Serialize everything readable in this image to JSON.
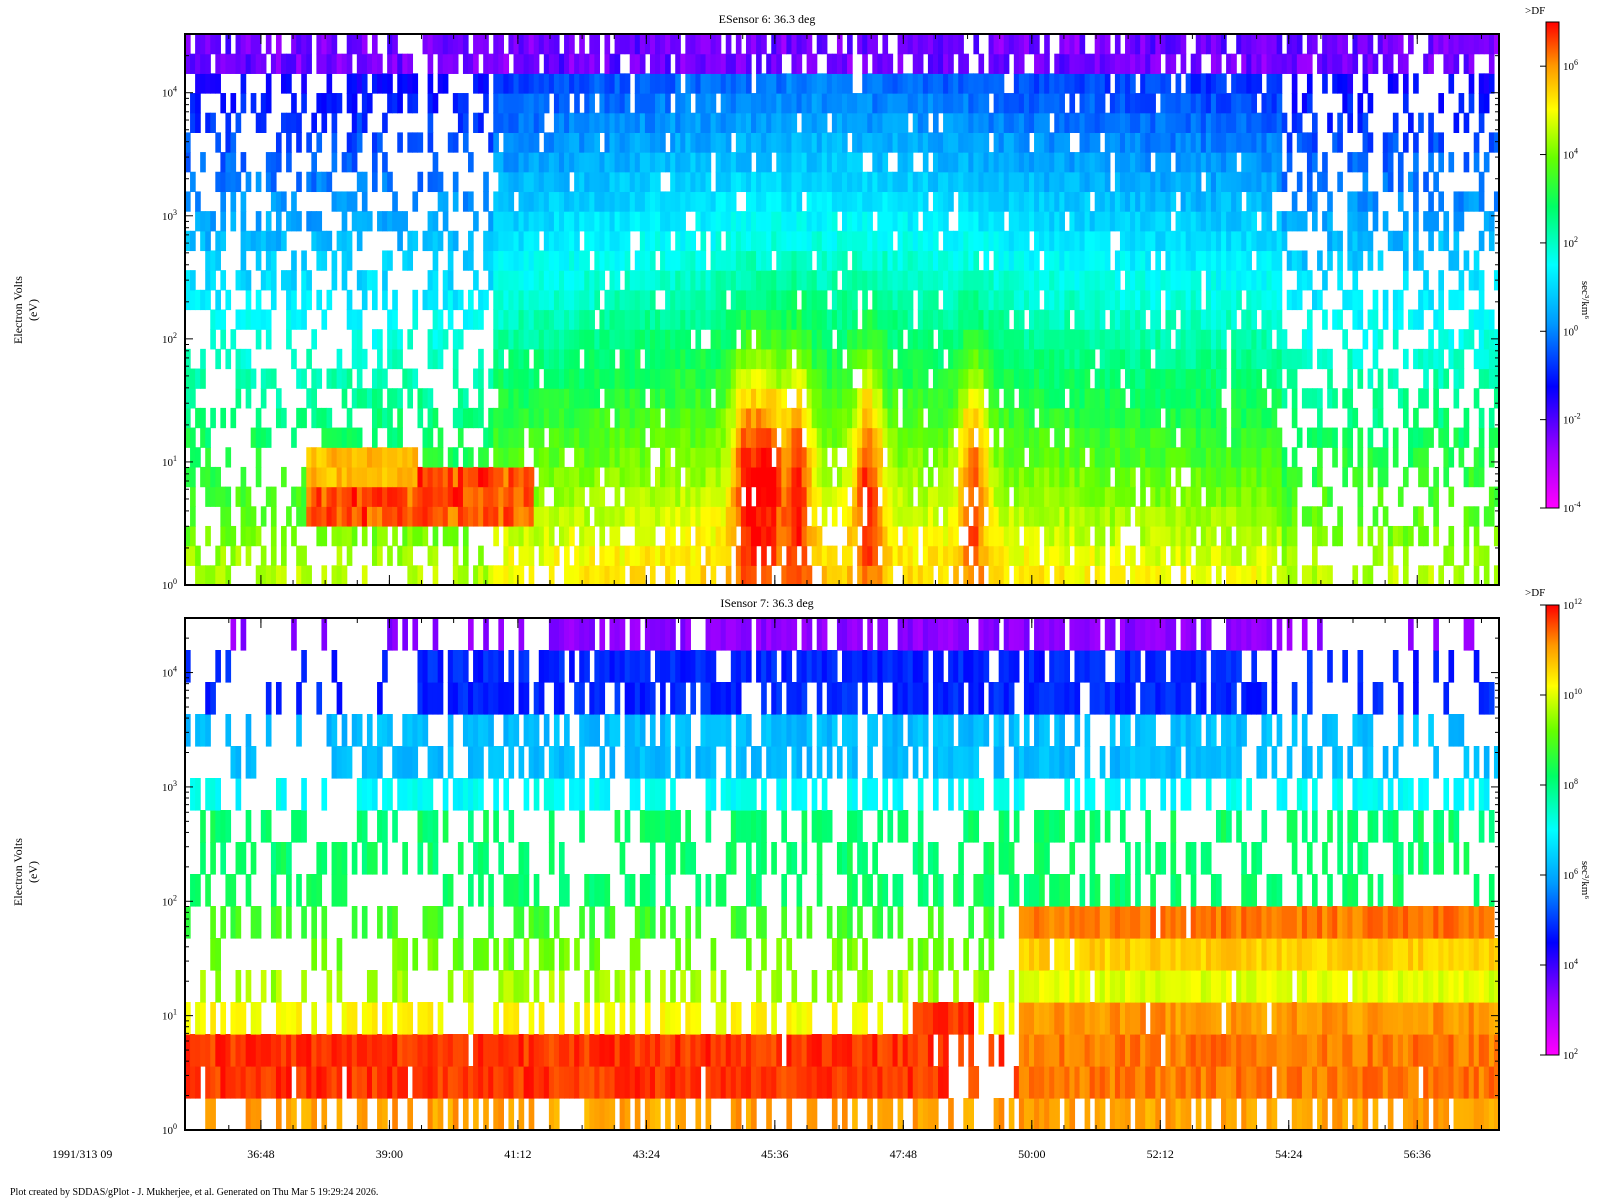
{
  "figure": {
    "date_label": "1991/313 09",
    "footer": "Plot created by SDDAS/gPlot - J. Mukherjee, et al.  Generated on Thu Mar 5 19:29:24 2026."
  },
  "chart_data": [
    {
      "type": "heatmap",
      "title": "ESensor 6: 36.3 deg",
      "ylabel": [
        "Electron Volts",
        "(eV)"
      ],
      "yscale": "log",
      "ylim": [
        1,
        30000
      ],
      "ytick_values": [
        1,
        10,
        100,
        1000,
        10000
      ],
      "ytick_labels": [
        [
          "10",
          "0"
        ],
        [
          "10",
          "1"
        ],
        [
          "10",
          "2"
        ],
        [
          "10",
          "3"
        ],
        [
          "10",
          "4"
        ]
      ],
      "xlim_minutes": [
        35.5,
        58.0
      ],
      "colorbar": {
        "label": ">DF",
        "unit": "sec³/km⁶",
        "scale": "log",
        "range": [
          0.0001,
          10000000
        ],
        "tick_values": [
          0.0001,
          0.01,
          1,
          100,
          10000,
          1000000
        ],
        "tick_labels": [
          [
            "10",
            "-4"
          ],
          [
            "10",
            "-2"
          ],
          [
            "10",
            "0"
          ],
          [
            "10",
            "2"
          ],
          [
            "10",
            "4"
          ],
          [
            "10",
            "6"
          ]
        ]
      },
      "features": [
        {
          "desc": "white/sparse background before 40:50 above 20 eV",
          "t": [
            35.5,
            40.8
          ]
        },
        {
          "desc": "broad green-cyan-blue band 40:50 to 54:30",
          "t": [
            40.8,
            54.3
          ]
        },
        {
          "desc": "red core at 3-8 eV",
          "t": [
            37.6,
            41.5
          ]
        },
        {
          "desc": "orange-yellow vertical bursts",
          "t_centers": [
            45.1,
            45.5,
            46.0,
            47.2,
            49.0
          ]
        }
      ]
    },
    {
      "type": "heatmap",
      "title": "ISensor 7: 36.3 deg",
      "ylabel": [
        "Electron Volts",
        "(eV)"
      ],
      "yscale": "log",
      "ylim": [
        1,
        30000
      ],
      "ytick_values": [
        1,
        10,
        100,
        1000,
        10000
      ],
      "ytick_labels": [
        [
          "10",
          "0"
        ],
        [
          "10",
          "1"
        ],
        [
          "10",
          "2"
        ],
        [
          "10",
          "3"
        ],
        [
          "10",
          "4"
        ]
      ],
      "xlim_minutes": [
        35.5,
        58.0
      ],
      "colorbar": {
        "label": ">DF",
        "unit": "sec³/km⁶",
        "scale": "log",
        "range": [
          100,
          1000000000000
        ],
        "tick_values": [
          100,
          10000,
          1000000,
          100000000,
          10000000000,
          1000000000000
        ],
        "tick_labels": [
          [
            "10",
            "2"
          ],
          [
            "10",
            "4"
          ],
          [
            "10",
            "6"
          ],
          [
            "10",
            "8"
          ],
          [
            "10",
            "10"
          ],
          [
            "10",
            "12"
          ]
        ]
      },
      "features": [
        {
          "desc": "red band 2.5-5 eV",
          "t": [
            35.5,
            48.6
          ]
        },
        {
          "desc": "orange-red band 20-100 eV after jump",
          "t": [
            49.8,
            58.0
          ]
        },
        {
          "desc": "dense blue 3000-20000 eV",
          "t": [
            38.5,
            54.0
          ]
        }
      ]
    }
  ],
  "x_axis": {
    "tick_labels": [
      "36:48",
      "39:00",
      "41:12",
      "43:24",
      "45:36",
      "47:48",
      "50:00",
      "52:12",
      "54:24",
      "56:36"
    ],
    "tick_minutes": [
      36.8,
      39.0,
      41.2,
      43.4,
      45.6,
      47.8,
      50.0,
      52.2,
      54.4,
      56.6
    ]
  }
}
